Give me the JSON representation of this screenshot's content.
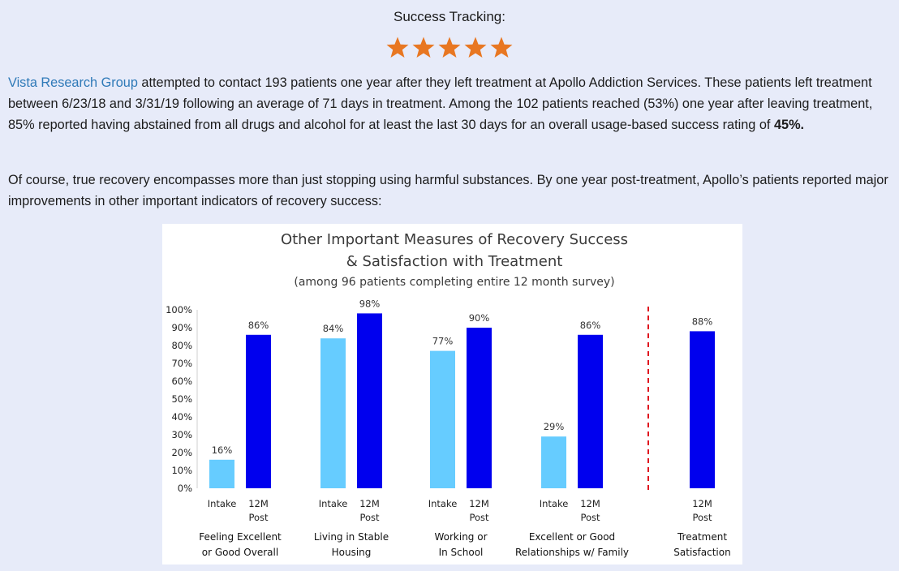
{
  "header": {
    "title": "Success Tracking:"
  },
  "rating": {
    "stars": 5,
    "max": 5,
    "icon": "star-icon",
    "color": "#e87722"
  },
  "body": {
    "p1": {
      "link": "Vista Research Group",
      "text": " attempted to contact 193 patients one year after they left treatment at Apollo Addiction Services.  These patients left treatment between 6/23/18 and 3/31/19 following an average of 71 days in treatment.  Among the 102 patients reached (53%) one year after leaving treatment, 85% reported having abstained from all drugs and alcohol for at least the last 30 days for an overall usage-based success rating of ",
      "strong": "45%."
    },
    "p2": "Of course, true recovery encompasses more than just stopping using harmful substances. By one year post-treatment, Apollo’s patients reported major improvements in other important indicators of recovery success:"
  },
  "chart_data": {
    "type": "bar",
    "title_lines": [
      "Other Important Measures of Recovery Success",
      "& Satisfaction with Treatment"
    ],
    "subtitle": "(among 96 patients completing entire 12 month survey)",
    "ylim": [
      0,
      100
    ],
    "yticks": [
      "0%",
      "10%",
      "20%",
      "30%",
      "40%",
      "50%",
      "60%",
      "70%",
      "80%",
      "90%",
      "100%"
    ],
    "grid": false,
    "colors": {
      "intake": "#66ccff",
      "post": "#0000ee",
      "divider": "#e0141e"
    },
    "groups": [
      {
        "category": [
          "Feeling Excellent",
          "or Good Overall"
        ],
        "bars": [
          {
            "label": [
              "Intake"
            ],
            "value": 16,
            "value_label": "16%",
            "series": "intake"
          },
          {
            "label": [
              "12M",
              "Post"
            ],
            "value": 86,
            "value_label": "86%",
            "series": "post"
          }
        ]
      },
      {
        "category": [
          "Living in Stable",
          "Housing"
        ],
        "bars": [
          {
            "label": [
              "Intake"
            ],
            "value": 84,
            "value_label": "84%",
            "series": "intake"
          },
          {
            "label": [
              "12M",
              "Post"
            ],
            "value": 98,
            "value_label": "98%",
            "series": "post"
          }
        ]
      },
      {
        "category": [
          "Working or",
          "In School"
        ],
        "bars": [
          {
            "label": [
              "Intake"
            ],
            "value": 77,
            "value_label": "77%",
            "series": "intake"
          },
          {
            "label": [
              "12M",
              "Post"
            ],
            "value": 90,
            "value_label": "90%",
            "series": "post"
          }
        ]
      },
      {
        "category": [
          "Excellent or Good",
          "Relationships w/ Family"
        ],
        "bars": [
          {
            "label": [
              "Intake"
            ],
            "value": 29,
            "value_label": "29%",
            "series": "intake"
          },
          {
            "label": [
              "12M",
              "Post"
            ],
            "value": 86,
            "value_label": "86%",
            "series": "post"
          }
        ]
      },
      {
        "category": [
          "Treatment",
          "Satisfaction"
        ],
        "bars": [
          {
            "label": [
              "12M",
              "Post"
            ],
            "value": 88,
            "value_label": "88%",
            "series": "post"
          }
        ]
      }
    ]
  }
}
